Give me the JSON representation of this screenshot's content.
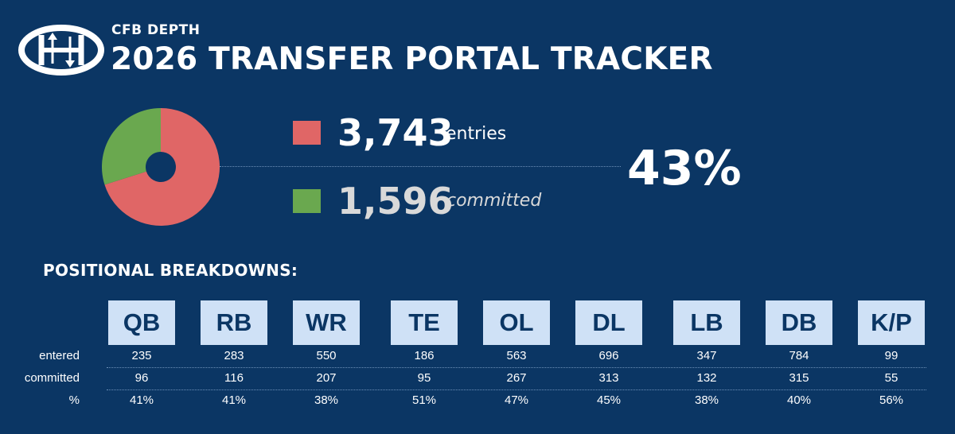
{
  "header": {
    "brand": "CFB DEPTH",
    "title": "2026 TRANSFER PORTAL TRACKER"
  },
  "colors": {
    "background": "#0b3664",
    "entries": "#e06666",
    "committed": "#6aa84f",
    "position_tile": "#cfe1f6"
  },
  "summary": {
    "entries_value": "3,743",
    "entries_label": "entries",
    "committed_value": "1,596",
    "committed_label": "committed",
    "percent": "43%"
  },
  "section": {
    "title": "POSITIONAL BREAKDOWNS:"
  },
  "chart_data": [
    {
      "type": "pie",
      "slices": [
        {
          "name": "entries",
          "value": 3743,
          "color": "#e06666"
        },
        {
          "name": "committed",
          "value": 1596,
          "color": "#6aa84f"
        }
      ],
      "note_value": "43%"
    },
    {
      "type": "table",
      "row_labels": [
        "entered",
        "committed",
        "%"
      ],
      "columns": [
        "QB",
        "RB",
        "WR",
        "TE",
        "OL",
        "DL",
        "LB",
        "DB",
        "K/P"
      ],
      "rows": {
        "entered": [
          "235",
          "283",
          "550",
          "186",
          "563",
          "696",
          "347",
          "784",
          "99"
        ],
        "committed": [
          "96",
          "116",
          "207",
          "95",
          "267",
          "313",
          "132",
          "315",
          "55"
        ],
        "percent": [
          "41%",
          "41%",
          "38%",
          "51%",
          "47%",
          "45%",
          "38%",
          "40%",
          "56%"
        ]
      }
    }
  ]
}
